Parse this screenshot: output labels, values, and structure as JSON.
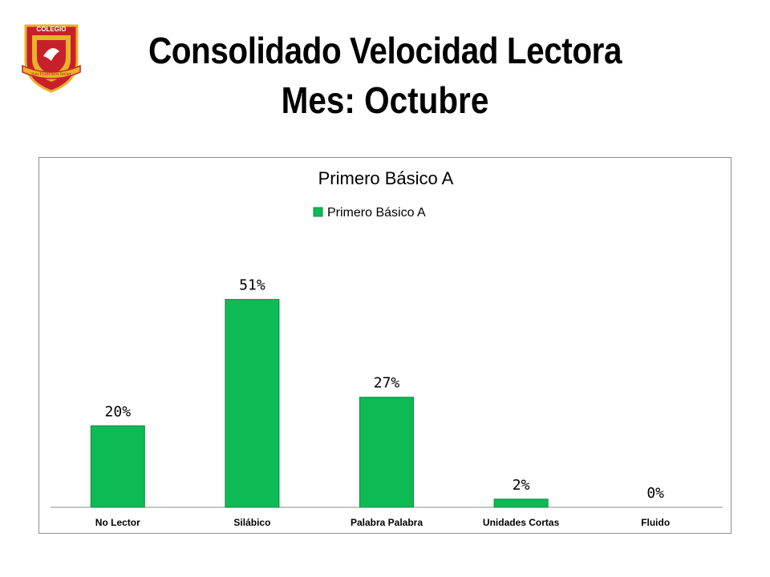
{
  "header": {
    "logo_text_top": "COLEGIO",
    "logo_text_ribbon": "San Francisco Javier",
    "title_line1": "Consolidado Velocidad Lectora",
    "title_line2": "Mes: Octubre"
  },
  "colors": {
    "bar": "#0dbb55",
    "bar_edge": "#0a8c40",
    "axis": "#8c8c8c",
    "logo_red": "#c8202a",
    "logo_gold": "#e8b22a"
  },
  "chart_data": {
    "type": "bar",
    "title": "Primero Básico A",
    "categories": [
      "No Lector",
      "Silábico",
      "Palabra Palabra",
      "Unidades Cortas",
      "Fluido"
    ],
    "series": [
      {
        "name": "Primero Básico A",
        "values": [
          20,
          51,
          27,
          2,
          0
        ]
      }
    ],
    "data_labels": [
      "20%",
      "51%",
      "27%",
      "2%",
      "0%"
    ],
    "ylim": [
      0,
      70
    ],
    "grid": false,
    "legend": "top-center"
  }
}
